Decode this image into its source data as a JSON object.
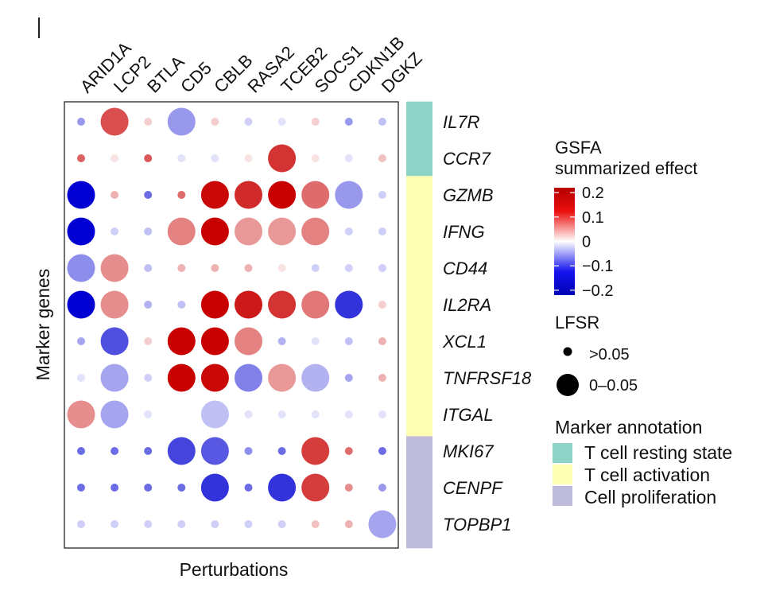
{
  "chart_data": {
    "type": "bubble-heatmap",
    "xlabel": "Perturbations",
    "ylabel": "Marker genes",
    "perturbations": [
      "ARID1A",
      "LCP2",
      "BTLA",
      "CD5",
      "CBLB",
      "RASA2",
      "TCEB2",
      "SOCS1",
      "CDKN1B",
      "DGKZ"
    ],
    "genes": [
      "IL7R",
      "CCR7",
      "GZMB",
      "IFNG",
      "CD44",
      "IL2RA",
      "XCL1",
      "TNFRSF18",
      "ITGAL",
      "MKI67",
      "CENPF",
      "TOPBP1"
    ],
    "effect": [
      [
        -0.06,
        0.13,
        0.02,
        -0.06,
        0.02,
        -0.02,
        -0.01,
        0.02,
        -0.06,
        -0.03
      ],
      [
        0.11,
        0.01,
        0.12,
        -0.01,
        -0.01,
        0.01,
        0.16,
        0.01,
        -0.01,
        0.03
      ],
      [
        -0.22,
        0.04,
        -0.1,
        0.1,
        0.21,
        0.17,
        0.22,
        0.1,
        -0.06,
        -0.02
      ],
      [
        -0.22,
        -0.02,
        -0.03,
        0.08,
        0.22,
        0.06,
        0.06,
        0.08,
        -0.02,
        -0.02
      ],
      [
        -0.07,
        0.07,
        -0.03,
        0.04,
        0.04,
        0.04,
        0.01,
        -0.02,
        -0.02,
        -0.02
      ],
      [
        -0.22,
        0.07,
        -0.04,
        -0.03,
        0.22,
        0.19,
        0.16,
        0.09,
        -0.16,
        0.02
      ],
      [
        -0.05,
        -0.13,
        0.02,
        0.24,
        0.22,
        0.08,
        -0.04,
        -0.01,
        -0.03,
        0.04
      ],
      [
        -0.01,
        -0.05,
        -0.02,
        0.22,
        0.21,
        -0.08,
        0.06,
        -0.04,
        -0.05,
        0.04
      ],
      [
        0.07,
        -0.05,
        -0.01,
        0.0,
        -0.03,
        -0.01,
        -0.01,
        -0.01,
        -0.01,
        -0.01
      ],
      [
        -0.1,
        -0.1,
        -0.1,
        -0.14,
        -0.12,
        -0.07,
        -0.1,
        0.15,
        0.1,
        -0.1
      ],
      [
        -0.1,
        -0.1,
        -0.1,
        -0.1,
        -0.16,
        -0.1,
        -0.16,
        0.15,
        0.07,
        -0.06
      ],
      [
        -0.02,
        -0.02,
        -0.02,
        -0.02,
        -0.02,
        -0.02,
        -0.02,
        0.03,
        0.04,
        -0.05
      ]
    ],
    "significant": [
      [
        0,
        1,
        0,
        1,
        0,
        0,
        0,
        0,
        0,
        0
      ],
      [
        0,
        0,
        0,
        0,
        0,
        0,
        1,
        0,
        0,
        0
      ],
      [
        1,
        0,
        0,
        0,
        1,
        1,
        1,
        1,
        1,
        0
      ],
      [
        1,
        0,
        0,
        1,
        1,
        1,
        1,
        1,
        0,
        0
      ],
      [
        1,
        1,
        0,
        0,
        0,
        0,
        0,
        0,
        0,
        0
      ],
      [
        1,
        1,
        0,
        0,
        1,
        1,
        1,
        1,
        1,
        0
      ],
      [
        0,
        1,
        0,
        1,
        1,
        1,
        0,
        0,
        0,
        0
      ],
      [
        0,
        1,
        0,
        1,
        1,
        1,
        1,
        1,
        0,
        0
      ],
      [
        1,
        1,
        0,
        0,
        1,
        0,
        0,
        0,
        0,
        0
      ],
      [
        0,
        0,
        0,
        1,
        1,
        0,
        0,
        1,
        0,
        0
      ],
      [
        0,
        0,
        0,
        0,
        1,
        0,
        1,
        1,
        0,
        0
      ],
      [
        0,
        0,
        0,
        0,
        0,
        0,
        0,
        0,
        0,
        1
      ]
    ],
    "gene_annotation": [
      "T cell resting state",
      "T cell resting state",
      "T cell activation",
      "T cell activation",
      "T cell activation",
      "T cell activation",
      "T cell activation",
      "T cell activation",
      "T cell activation",
      "Cell proliferation",
      "Cell proliferation",
      "Cell proliferation"
    ],
    "colorbar": {
      "title_line1": "GSFA",
      "title_line2": "summarized effect",
      "range": [
        -0.22,
        0.22
      ],
      "ticks": [
        "0.2",
        "0.1",
        "0",
        "−0.1",
        "−0.2"
      ],
      "tick_values": [
        0.2,
        0.1,
        0,
        -0.1,
        -0.2
      ],
      "colors": {
        "high": "#c80000",
        "mid": "#ffffff",
        "low": "#0000d2"
      }
    },
    "size_legend": {
      "title": "LFSR",
      "entries": [
        ">0.05",
        "0–0.05"
      ]
    },
    "annotation_legend": {
      "title": "Marker annotation",
      "entries": [
        {
          "label": "T cell resting state",
          "color": "#8ed3c7"
        },
        {
          "label": "T cell activation",
          "color": "#ffffb3"
        },
        {
          "label": "Cell proliferation",
          "color": "#bebadb"
        }
      ]
    }
  }
}
